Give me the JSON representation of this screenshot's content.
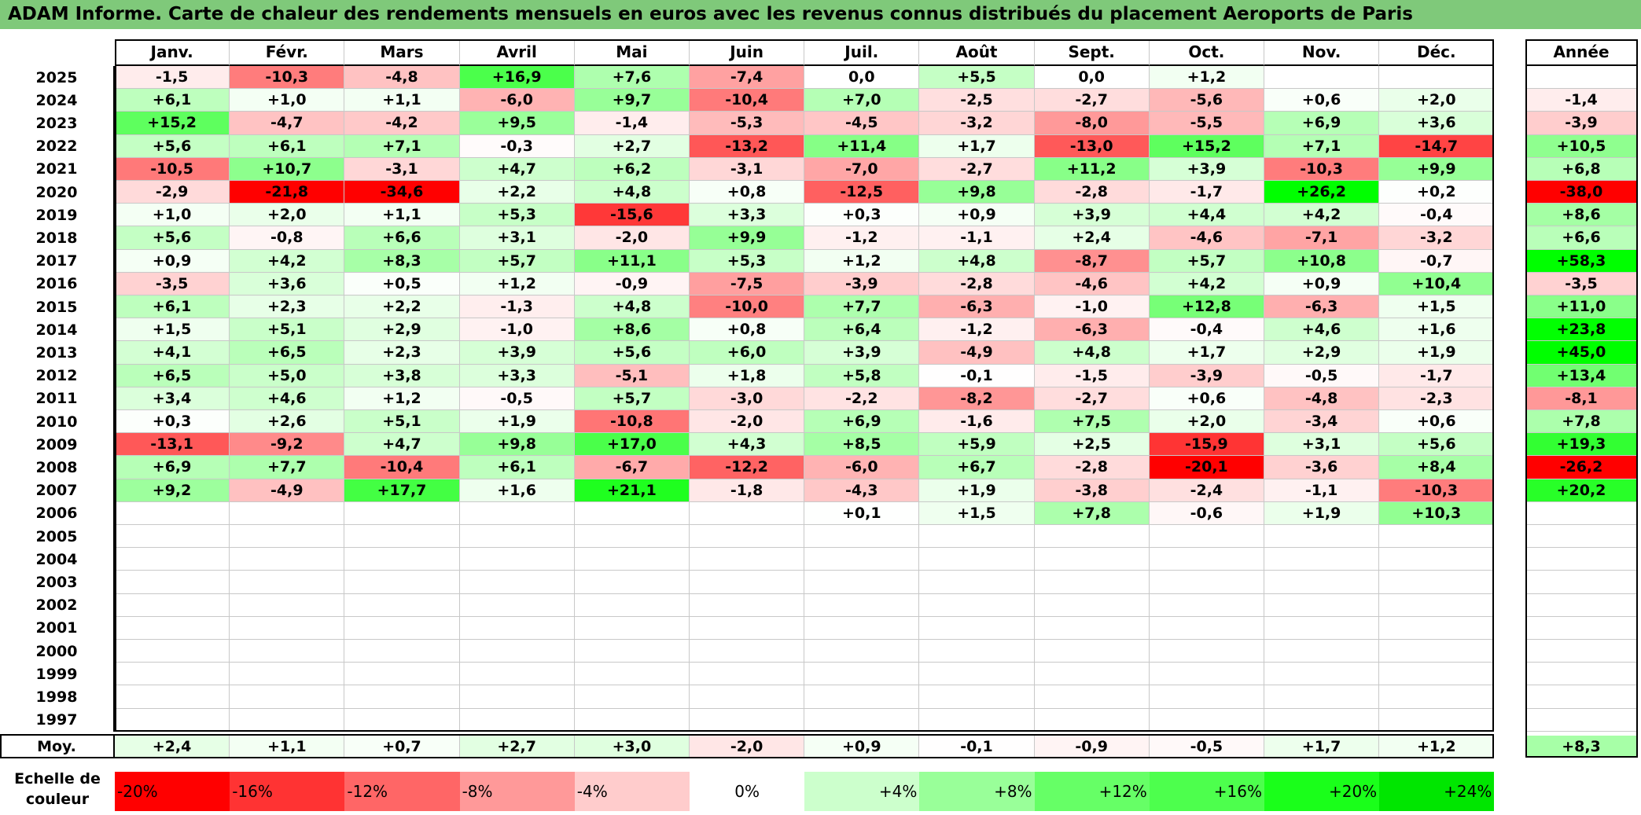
{
  "title": "ADAM Informe. Carte de chaleur des rendements mensuels en euros avec les revenus connus distribués du placement Aeroports de Paris",
  "chart_data": {
    "type": "heatmap",
    "columns": [
      "Janv.",
      "Févr.",
      "Mars",
      "Avril",
      "Mai",
      "Juin",
      "Juil.",
      "Août",
      "Sept.",
      "Oct.",
      "Nov.",
      "Déc."
    ],
    "year_header": "Année",
    "rows": [
      {
        "year": "2025",
        "values": [
          "-1,5",
          "-10,3",
          "-4,8",
          "+16,9",
          "+7,6",
          "-7,4",
          "0,0",
          "+5,5",
          "0,0",
          "+1,2",
          "",
          ""
        ],
        "annual": ""
      },
      {
        "year": "2024",
        "values": [
          "+6,1",
          "+1,0",
          "+1,1",
          "-6,0",
          "+9,7",
          "-10,4",
          "+7,0",
          "-2,5",
          "-2,7",
          "-5,6",
          "+0,6",
          "+2,0"
        ],
        "annual": "-1,4"
      },
      {
        "year": "2023",
        "values": [
          "+15,2",
          "-4,7",
          "-4,2",
          "+9,5",
          "-1,4",
          "-5,3",
          "-4,5",
          "-3,2",
          "-8,0",
          "-5,5",
          "+6,9",
          "+3,6"
        ],
        "annual": "-3,9"
      },
      {
        "year": "2022",
        "values": [
          "+5,6",
          "+6,1",
          "+7,1",
          "-0,3",
          "+2,7",
          "-13,2",
          "+11,4",
          "+1,7",
          "-13,0",
          "+15,2",
          "+7,1",
          "-14,7"
        ],
        "annual": "+10,5"
      },
      {
        "year": "2021",
        "values": [
          "-10,5",
          "+10,7",
          "-3,1",
          "+4,7",
          "+6,2",
          "-3,1",
          "-7,0",
          "-2,7",
          "+11,2",
          "+3,9",
          "-10,3",
          "+9,9"
        ],
        "annual": "+6,8"
      },
      {
        "year": "2020",
        "values": [
          "-2,9",
          "-21,8",
          "-34,6",
          "+2,2",
          "+4,8",
          "+0,8",
          "-12,5",
          "+9,8",
          "-2,8",
          "-1,7",
          "+26,2",
          "+0,2"
        ],
        "annual": "-38,0"
      },
      {
        "year": "2019",
        "values": [
          "+1,0",
          "+2,0",
          "+1,1",
          "+5,3",
          "-15,6",
          "+3,3",
          "+0,3",
          "+0,9",
          "+3,9",
          "+4,4",
          "+4,2",
          "-0,4"
        ],
        "annual": "+8,6"
      },
      {
        "year": "2018",
        "values": [
          "+5,6",
          "-0,8",
          "+6,6",
          "+3,1",
          "-2,0",
          "+9,9",
          "-1,2",
          "-1,1",
          "+2,4",
          "-4,6",
          "-7,1",
          "-3,2"
        ],
        "annual": "+6,6"
      },
      {
        "year": "2017",
        "values": [
          "+0,9",
          "+4,2",
          "+8,3",
          "+5,7",
          "+11,1",
          "+5,3",
          "+1,2",
          "+4,8",
          "-8,7",
          "+5,7",
          "+10,8",
          "-0,7"
        ],
        "annual": "+58,3"
      },
      {
        "year": "2016",
        "values": [
          "-3,5",
          "+3,6",
          "+0,5",
          "+1,2",
          "-0,9",
          "-7,5",
          "-3,9",
          "-2,8",
          "-4,6",
          "+4,2",
          "+0,9",
          "+10,4"
        ],
        "annual": "-3,5"
      },
      {
        "year": "2015",
        "values": [
          "+6,1",
          "+2,3",
          "+2,2",
          "-1,3",
          "+4,8",
          "-10,0",
          "+7,7",
          "-6,3",
          "-1,0",
          "+12,8",
          "-6,3",
          "+1,5"
        ],
        "annual": "+11,0"
      },
      {
        "year": "2014",
        "values": [
          "+1,5",
          "+5,1",
          "+2,9",
          "-1,0",
          "+8,6",
          "+0,8",
          "+6,4",
          "-1,2",
          "-6,3",
          "-0,4",
          "+4,6",
          "+1,6"
        ],
        "annual": "+23,8"
      },
      {
        "year": "2013",
        "values": [
          "+4,1",
          "+6,5",
          "+2,3",
          "+3,9",
          "+5,6",
          "+6,0",
          "+3,9",
          "-4,9",
          "+4,8",
          "+1,7",
          "+2,9",
          "+1,9"
        ],
        "annual": "+45,0"
      },
      {
        "year": "2012",
        "values": [
          "+6,5",
          "+5,0",
          "+3,8",
          "+3,3",
          "-5,1",
          "+1,8",
          "+5,8",
          "-0,1",
          "-1,5",
          "-3,9",
          "-0,5",
          "-1,7"
        ],
        "annual": "+13,4"
      },
      {
        "year": "2011",
        "values": [
          "+3,4",
          "+4,6",
          "+1,2",
          "-0,5",
          "+5,7",
          "-3,0",
          "-2,2",
          "-8,2",
          "-2,7",
          "+0,6",
          "-4,8",
          "-2,3"
        ],
        "annual": "-8,1"
      },
      {
        "year": "2010",
        "values": [
          "+0,3",
          "+2,6",
          "+5,1",
          "+1,9",
          "-10,8",
          "-2,0",
          "+6,9",
          "-1,6",
          "+7,5",
          "+2,0",
          "-3,4",
          "+0,6"
        ],
        "annual": "+7,8"
      },
      {
        "year": "2009",
        "values": [
          "-13,1",
          "-9,2",
          "+4,7",
          "+9,8",
          "+17,0",
          "+4,3",
          "+8,5",
          "+5,9",
          "+2,5",
          "-15,9",
          "+3,1",
          "+5,6"
        ],
        "annual": "+19,3"
      },
      {
        "year": "2008",
        "values": [
          "+6,9",
          "+7,7",
          "-10,4",
          "+6,1",
          "-6,7",
          "-12,2",
          "-6,0",
          "+6,7",
          "-2,8",
          "-20,1",
          "-3,6",
          "+8,4"
        ],
        "annual": "-26,2"
      },
      {
        "year": "2007",
        "values": [
          "+9,2",
          "-4,9",
          "+17,7",
          "+1,6",
          "+21,1",
          "-1,8",
          "-4,3",
          "+1,9",
          "-3,8",
          "-2,4",
          "-1,1",
          "-10,3"
        ],
        "annual": "+20,2"
      },
      {
        "year": "2006",
        "values": [
          "",
          "",
          "",
          "",
          "",
          "",
          "+0,1",
          "+1,5",
          "+7,8",
          "-0,6",
          "+1,9",
          "+10,3"
        ],
        "annual": ""
      },
      {
        "year": "2005",
        "values": [
          "",
          "",
          "",
          "",
          "",
          "",
          "",
          "",
          "",
          "",
          "",
          ""
        ],
        "annual": ""
      },
      {
        "year": "2004",
        "values": [
          "",
          "",
          "",
          "",
          "",
          "",
          "",
          "",
          "",
          "",
          "",
          ""
        ],
        "annual": ""
      },
      {
        "year": "2003",
        "values": [
          "",
          "",
          "",
          "",
          "",
          "",
          "",
          "",
          "",
          "",
          "",
          ""
        ],
        "annual": ""
      },
      {
        "year": "2002",
        "values": [
          "",
          "",
          "",
          "",
          "",
          "",
          "",
          "",
          "",
          "",
          "",
          ""
        ],
        "annual": ""
      },
      {
        "year": "2001",
        "values": [
          "",
          "",
          "",
          "",
          "",
          "",
          "",
          "",
          "",
          "",
          "",
          ""
        ],
        "annual": ""
      },
      {
        "year": "2000",
        "values": [
          "",
          "",
          "",
          "",
          "",
          "",
          "",
          "",
          "",
          "",
          "",
          ""
        ],
        "annual": ""
      },
      {
        "year": "1999",
        "values": [
          "",
          "",
          "",
          "",
          "",
          "",
          "",
          "",
          "",
          "",
          "",
          ""
        ],
        "annual": ""
      },
      {
        "year": "1998",
        "values": [
          "",
          "",
          "",
          "",
          "",
          "",
          "",
          "",
          "",
          "",
          "",
          ""
        ],
        "annual": ""
      },
      {
        "year": "1997",
        "values": [
          "",
          "",
          "",
          "",
          "",
          "",
          "",
          "",
          "",
          "",
          "",
          ""
        ],
        "annual": ""
      }
    ],
    "average": {
      "label": "Moy.",
      "values": [
        "+2,4",
        "+1,1",
        "+0,7",
        "+2,7",
        "+3,0",
        "-2,0",
        "+0,9",
        "-0,1",
        "-0,9",
        "-0,5",
        "+1,7",
        "+1,2"
      ],
      "annual": "+8,3"
    },
    "legend": {
      "title": "Echelle de couleur",
      "entries": [
        {
          "label": "-20%",
          "color": "#ff0000",
          "align": "left"
        },
        {
          "label": "-16%",
          "color": "#ff3333",
          "align": "left"
        },
        {
          "label": "-12%",
          "color": "#ff6666",
          "align": "left"
        },
        {
          "label": "-8%",
          "color": "#ff9999",
          "align": "left"
        },
        {
          "label": "-4%",
          "color": "#ffcccc",
          "align": "left"
        },
        {
          "label": "0%",
          "color": "#ffffff",
          "align": "center"
        },
        {
          "label": "+4%",
          "color": "#ccffcc",
          "align": "right"
        },
        {
          "label": "+8%",
          "color": "#99ff99",
          "align": "right"
        },
        {
          "label": "+12%",
          "color": "#66ff66",
          "align": "right"
        },
        {
          "label": "+16%",
          "color": "#4dff4d",
          "align": "right"
        },
        {
          "label": "+20%",
          "color": "#1aff1a",
          "align": "right"
        },
        {
          "label": "+24%",
          "color": "#00e600",
          "align": "right"
        }
      ]
    },
    "color_scale": {
      "negative": "#ff0000",
      "neutral": "#ffffff",
      "positive": "#00ff00",
      "min": -20,
      "max": 24
    }
  }
}
